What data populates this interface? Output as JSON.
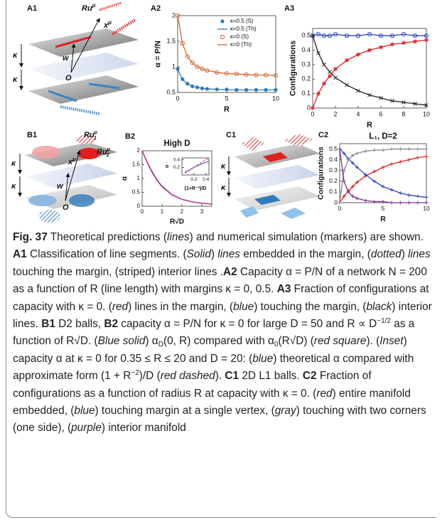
{
  "figure": {
    "diagrams": {
      "A1": {
        "panel": "A1",
        "ru": {
          "text": "Ru",
          "sup": "μ"
        },
        "x": {
          "text": "x",
          "sup": "μ"
        },
        "kappa": [
          "κ",
          "κ"
        ],
        "w": "w",
        "o": "O"
      },
      "B1": {
        "panel": "B1",
        "ru1": {
          "text": "Ru",
          "sup": "μ",
          "sub": "1"
        },
        "ru2": {
          "text": "Ru",
          "sup": "μ",
          "sub": "2"
        },
        "x": {
          "text": "x",
          "sup": "μ"
        },
        "kappa": [
          "κ",
          "κ"
        ],
        "w": "w",
        "o": "O"
      },
      "C1": {
        "panel": "C1",
        "kappa": [
          "κ",
          "κ"
        ]
      }
    }
  },
  "chart_data": [
    {
      "type": "line",
      "panel": "A2",
      "xlabel": "R",
      "ylabel": "α = P/N",
      "xlim": [
        0,
        10
      ],
      "ylim": [
        0.5,
        2
      ],
      "xticks": [
        0,
        5,
        10
      ],
      "yticks": [
        0.5,
        1,
        1.5,
        2
      ],
      "legend": "upper right",
      "x": [
        0,
        0.5,
        1,
        1.5,
        2,
        2.5,
        3,
        4,
        5,
        6,
        7,
        8,
        9,
        10
      ],
      "series": [
        {
          "name": "κ=0.5 (S)",
          "color": "#2f7bbd",
          "marker": "circle",
          "values": [
            0.96,
            0.76,
            0.67,
            0.62,
            0.6,
            0.58,
            0.57,
            0.56,
            0.56,
            0.55,
            0.55,
            0.55,
            0.55,
            0.55
          ]
        },
        {
          "name": "κ=0.5 (Th)",
          "color": "#2f7bbd",
          "line": "solid",
          "values": [
            0.95,
            0.75,
            0.67,
            0.62,
            0.6,
            0.58,
            0.57,
            0.56,
            0.55,
            0.55,
            0.55,
            0.55,
            0.55,
            0.55
          ]
        },
        {
          "name": "κ=0 (S)",
          "color": "#d8642c",
          "marker": "open-circle",
          "values": [
            2,
            1.46,
            1.2,
            1.08,
            1.0,
            0.96,
            0.93,
            0.89,
            0.87,
            0.86,
            0.85,
            0.84,
            0.84,
            0.83
          ]
        },
        {
          "name": "κ=0 (Th)",
          "color": "#d8642c",
          "line": "solid",
          "values": [
            2,
            1.45,
            1.2,
            1.08,
            1.0,
            0.96,
            0.93,
            0.89,
            0.87,
            0.86,
            0.85,
            0.84,
            0.84,
            0.83
          ]
        }
      ]
    },
    {
      "type": "line",
      "panel": "A3",
      "xlabel": "R",
      "ylabel": "Configurations",
      "xlim": [
        0,
        10
      ],
      "ylim": [
        0,
        0.55
      ],
      "xticks": [
        0,
        2,
        4,
        6,
        8,
        10
      ],
      "yticks": [
        0,
        0.1,
        0.2,
        0.3,
        0.4,
        0.5
      ],
      "x": [
        0,
        0.5,
        1,
        1.5,
        2,
        3,
        4,
        5,
        6,
        7,
        8,
        9,
        10
      ],
      "series": [
        {
          "color": "#2a45c8",
          "line": "solid",
          "marker": "open-circle",
          "values": [
            0.5,
            0.51,
            0.5,
            0.5,
            0.51,
            0.5,
            0.5,
            0.51,
            0.5,
            0.5,
            0.51,
            0.5,
            0.5
          ]
        },
        {
          "color": "#e02020",
          "line": "solid",
          "marker": "star",
          "values": [
            0,
            0.1,
            0.17,
            0.22,
            0.27,
            0.33,
            0.37,
            0.4,
            0.42,
            0.44,
            0.45,
            0.46,
            0.47
          ]
        },
        {
          "color": "#222222",
          "line": "solid",
          "marker": "x",
          "values": [
            0.5,
            0.38,
            0.3,
            0.25,
            0.21,
            0.16,
            0.12,
            0.09,
            0.07,
            0.05,
            0.04,
            0.03,
            0.02
          ]
        }
      ]
    },
    {
      "type": "line",
      "panel": "B2",
      "title": "High D",
      "xlabel": "R√D",
      "ylabel": "α",
      "xlim": [
        0,
        3.5
      ],
      "ylim": [
        0,
        2
      ],
      "xticks": [
        0,
        1,
        2,
        3
      ],
      "yticks": [
        0,
        0.5,
        1,
        1.5,
        2
      ],
      "x": [
        0,
        0.25,
        0.5,
        0.75,
        1,
        1.5,
        2,
        2.5,
        3,
        3.5
      ],
      "series": [
        {
          "color": "#2a45c8",
          "line": "solid",
          "values": [
            2,
            1.6,
            1.25,
            0.95,
            0.72,
            0.42,
            0.25,
            0.16,
            0.11,
            0.08
          ]
        },
        {
          "color": "#c8307a",
          "line": "solid",
          "values": [
            2,
            1.58,
            1.22,
            0.93,
            0.7,
            0.41,
            0.25,
            0.16,
            0.11,
            0.08
          ]
        }
      ]
    },
    {
      "type": "line",
      "xlabel": "(1+R⁻²)/D",
      "ylabel": "α",
      "xlim": [
        0,
        0.45
      ],
      "ylim": [
        0,
        0.45
      ],
      "xticks": [
        0.2,
        0.4
      ],
      "yticks": [
        0.2,
        0.4
      ],
      "x": [
        0.05,
        0.1,
        0.2,
        0.3,
        0.4,
        0.45
      ],
      "series": [
        {
          "color": "#2a45c8",
          "line": "solid",
          "values": [
            0.07,
            0.11,
            0.2,
            0.27,
            0.33,
            0.36
          ]
        },
        {
          "color": "#e02020",
          "line": "dashed",
          "values": [
            0.05,
            0.1,
            0.2,
            0.3,
            0.4,
            0.45
          ]
        }
      ]
    },
    {
      "type": "line",
      "panel": "C2",
      "title": "L₁, D=2",
      "xlabel": "R",
      "ylabel": "Configurations",
      "xlim": [
        0,
        10
      ],
      "ylim": [
        0,
        0.55
      ],
      "xticks": [
        0,
        5,
        10
      ],
      "yticks": [
        0,
        0.1,
        0.2,
        0.3,
        0.4,
        0.5
      ],
      "x": [
        0,
        0.5,
        1,
        1.5,
        2,
        3,
        4,
        5,
        6,
        7,
        8,
        9,
        10
      ],
      "series": [
        {
          "color": "#e02020",
          "line": "solid",
          "marker": "plus",
          "values": [
            0,
            0.06,
            0.11,
            0.15,
            0.19,
            0.25,
            0.29,
            0.33,
            0.36,
            0.38,
            0.4,
            0.42,
            0.43
          ]
        },
        {
          "color": "#2a45c8",
          "line": "solid",
          "marker": "plus",
          "values": [
            0.5,
            0.46,
            0.41,
            0.37,
            0.33,
            0.26,
            0.2,
            0.15,
            0.12,
            0.09,
            0.07,
            0.06,
            0.05
          ]
        },
        {
          "color": "#8a8a8a",
          "line": "solid",
          "marker": "plus",
          "values": [
            0,
            0.3,
            0.4,
            0.44,
            0.46,
            0.48,
            0.49,
            0.49,
            0.5,
            0.5,
            0.5,
            0.5,
            0.5
          ]
        },
        {
          "color": "#7b2f8f",
          "line": "solid",
          "marker": "plus",
          "values": [
            0.5,
            0.2,
            0.1,
            0.06,
            0.04,
            0.02,
            0.01,
            0.01,
            0,
            0,
            0,
            0,
            0
          ]
        }
      ]
    }
  ],
  "caption": {
    "runs": [
      {
        "text": "Fig. 37",
        "style": "bold"
      },
      {
        "text": " Theoretical predictions ("
      },
      {
        "text": "lines",
        "style": "italic"
      },
      {
        "text": ") and numerical simulation (markers) are shown. "
      },
      {
        "text": "A1",
        "style": "bold"
      },
      {
        "text": " Classification of line segments. ("
      },
      {
        "text": "Solid",
        "style": "italic"
      },
      {
        "text": ") "
      },
      {
        "text": "lines",
        "style": "italic"
      },
      {
        "text": " embedded in the margin, ("
      },
      {
        "text": "dotted",
        "style": "italic"
      },
      {
        "text": ") "
      },
      {
        "text": "lines",
        "style": "italic"
      },
      {
        "text": " touching the margin, (striped) interior lines ."
      },
      {
        "text": "A2",
        "style": "bold"
      },
      {
        "text": " Capacity α = P/N of a network N = 200 as a function of R (line length) with margins κ = 0, 0.5. "
      },
      {
        "text": "A3",
        "style": "bold"
      },
      {
        "text": " Fraction of configurations at capacity with κ = 0. ("
      },
      {
        "text": "red",
        "style": "italic"
      },
      {
        "text": ") lines in the margin, ("
      },
      {
        "text": "blue",
        "style": "italic"
      },
      {
        "text": ") touching the margin, ("
      },
      {
        "text": "black",
        "style": "italic"
      },
      {
        "text": ") interior lines. "
      },
      {
        "text": "B1",
        "style": "bold"
      },
      {
        "text": " D2 balls, "
      },
      {
        "text": "B2",
        "style": "bold"
      },
      {
        "text": " capacity α = P/N for κ = 0 for large D = 50 and R ∝ D"
      },
      {
        "text": "−1/2",
        "style": "sup"
      },
      {
        "text": " as a function of R√D. ("
      },
      {
        "text": "Blue solid",
        "style": "italic"
      },
      {
        "text": ") α"
      },
      {
        "text": "D",
        "style": "sub"
      },
      {
        "text": "(0, R) compared with α"
      },
      {
        "text": "0",
        "style": "sub"
      },
      {
        "text": "(R√D) ("
      },
      {
        "text": "red square",
        "style": "italic"
      },
      {
        "text": "). ("
      },
      {
        "text": "Inset",
        "style": "italic"
      },
      {
        "text": ") capacity α at κ = 0 for 0.35 ≤ R ≤ 20 and D = 20: ("
      },
      {
        "text": "blue",
        "style": "italic"
      },
      {
        "text": ") theoretical α compared with approximate form (1 + R"
      },
      {
        "text": "−2",
        "style": "sup"
      },
      {
        "text": ")/D ("
      },
      {
        "text": "red dashed",
        "style": "italic"
      },
      {
        "text": "). "
      },
      {
        "text": "C1",
        "style": "bold"
      },
      {
        "text": " 2D L1 balls. "
      },
      {
        "text": "C2",
        "style": "bold"
      },
      {
        "text": " Fraction of configurations as a function of radius R at capacity with κ = 0. ("
      },
      {
        "text": "red",
        "style": "italic"
      },
      {
        "text": ") entire manifold embedded, ("
      },
      {
        "text": "blue",
        "style": "italic"
      },
      {
        "text": ") touching margin at a single vertex, ("
      },
      {
        "text": "gray",
        "style": "italic"
      },
      {
        "text": ") touching with two corners (one side), ("
      },
      {
        "text": "purple",
        "style": "italic"
      },
      {
        "text": ") interior manifold"
      }
    ]
  }
}
